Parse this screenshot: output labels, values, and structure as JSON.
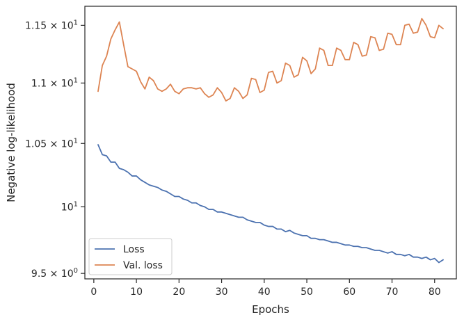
{
  "chart_data": {
    "type": "line",
    "xlabel": "Epochs",
    "ylabel": "Negative log-likelihood",
    "yscale": "log",
    "xlim": [
      -2.1,
      85.1
    ],
    "ylim": [
      9.46,
      11.67
    ],
    "x_ticks": [
      0,
      10,
      20,
      30,
      40,
      50,
      60,
      70,
      80
    ],
    "x_tick_labels": [
      "0",
      "10",
      "20",
      "30",
      "40",
      "50",
      "60",
      "70",
      "80"
    ],
    "y_ticks": [
      9.5,
      10.0,
      10.5,
      11.0,
      11.5
    ],
    "y_tick_labels": [
      {
        "mantissa": "9.5",
        "exp": "0"
      },
      {
        "mantissa": "",
        "exp": "1"
      },
      {
        "mantissa": "1.05",
        "exp": "1"
      },
      {
        "mantissa": "1.1",
        "exp": "1"
      },
      {
        "mantissa": "1.15",
        "exp": "1"
      }
    ],
    "grid": false,
    "legend_position": "lower-left",
    "x": [
      1,
      2,
      3,
      4,
      5,
      6,
      7,
      8,
      9,
      10,
      11,
      12,
      13,
      14,
      15,
      16,
      17,
      18,
      19,
      20,
      21,
      22,
      23,
      24,
      25,
      26,
      27,
      28,
      29,
      30,
      31,
      32,
      33,
      34,
      35,
      36,
      37,
      38,
      39,
      40,
      41,
      42,
      43,
      44,
      45,
      46,
      47,
      48,
      49,
      50,
      51,
      52,
      53,
      54,
      55,
      56,
      57,
      58,
      59,
      60,
      61,
      62,
      63,
      64,
      65,
      66,
      67,
      68,
      69,
      70,
      71,
      72,
      73,
      74,
      75,
      76,
      77,
      78,
      79,
      80,
      81,
      82
    ],
    "series": [
      {
        "name": "Loss",
        "color": "#4c72b0",
        "values": [
          10.49,
          10.41,
          10.4,
          10.35,
          10.35,
          10.3,
          10.29,
          10.27,
          10.24,
          10.24,
          10.21,
          10.19,
          10.17,
          10.16,
          10.15,
          10.13,
          10.12,
          10.1,
          10.08,
          10.08,
          10.06,
          10.05,
          10.03,
          10.03,
          10.01,
          10.0,
          9.98,
          9.98,
          9.96,
          9.96,
          9.95,
          9.94,
          9.93,
          9.92,
          9.92,
          9.9,
          9.89,
          9.88,
          9.88,
          9.86,
          9.85,
          9.85,
          9.83,
          9.83,
          9.81,
          9.82,
          9.8,
          9.79,
          9.78,
          9.78,
          9.76,
          9.76,
          9.75,
          9.75,
          9.74,
          9.73,
          9.73,
          9.72,
          9.71,
          9.71,
          9.7,
          9.7,
          9.69,
          9.69,
          9.68,
          9.67,
          9.67,
          9.66,
          9.65,
          9.66,
          9.64,
          9.64,
          9.63,
          9.64,
          9.62,
          9.62,
          9.61,
          9.62,
          9.6,
          9.61,
          9.58,
          9.6
        ]
      },
      {
        "name": "Val. loss",
        "color": "#dd8452",
        "values": [
          10.93,
          11.15,
          11.23,
          11.38,
          11.46,
          11.53,
          11.33,
          11.14,
          11.12,
          11.1,
          11.01,
          10.95,
          11.05,
          11.02,
          10.95,
          10.93,
          10.95,
          10.99,
          10.93,
          10.91,
          10.95,
          10.96,
          10.96,
          10.95,
          10.96,
          10.91,
          10.88,
          10.9,
          10.96,
          10.92,
          10.85,
          10.87,
          10.96,
          10.93,
          10.87,
          10.9,
          11.04,
          11.03,
          10.92,
          10.94,
          11.09,
          11.1,
          11.0,
          11.02,
          11.17,
          11.15,
          11.05,
          11.07,
          11.22,
          11.19,
          11.08,
          11.12,
          11.3,
          11.28,
          11.15,
          11.15,
          11.3,
          11.28,
          11.2,
          11.2,
          11.35,
          11.33,
          11.23,
          11.24,
          11.4,
          11.39,
          11.28,
          11.29,
          11.43,
          11.42,
          11.33,
          11.33,
          11.5,
          11.51,
          11.43,
          11.44,
          11.56,
          11.5,
          11.4,
          11.39,
          11.5,
          11.47
        ]
      }
    ]
  }
}
